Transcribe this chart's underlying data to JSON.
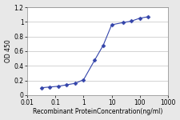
{
  "x": [
    0.031,
    0.063,
    0.125,
    0.25,
    0.5,
    1.0,
    2.5,
    5.0,
    10.0,
    25.0,
    50.0,
    100.0,
    200.0
  ],
  "y": [
    0.1,
    0.11,
    0.12,
    0.14,
    0.16,
    0.21,
    0.48,
    0.68,
    0.96,
    0.99,
    1.01,
    1.05,
    1.07
  ],
  "line_color": "#3344aa",
  "marker": "D",
  "marker_size": 2.5,
  "marker_facecolor": "#3344aa",
  "xlabel": "Recombinant ProteinConcentration(ng/ml)",
  "ylabel": "OD 450",
  "xlim_log": [
    0.01,
    1000
  ],
  "ylim": [
    0,
    1.2
  ],
  "yticks": [
    0,
    0.2,
    0.4,
    0.6,
    0.8,
    1.0,
    1.2
  ],
  "xticks": [
    0.01,
    0.1,
    1,
    10,
    100,
    1000
  ],
  "xtick_labels": [
    "0.01",
    "0.1",
    "1",
    "10",
    "100",
    "1000"
  ],
  "plot_bg_color": "#ffffff",
  "fig_bg_color": "#e8e8e8",
  "grid_color": "#cccccc",
  "label_fontsize": 5.5,
  "tick_fontsize": 5.5
}
